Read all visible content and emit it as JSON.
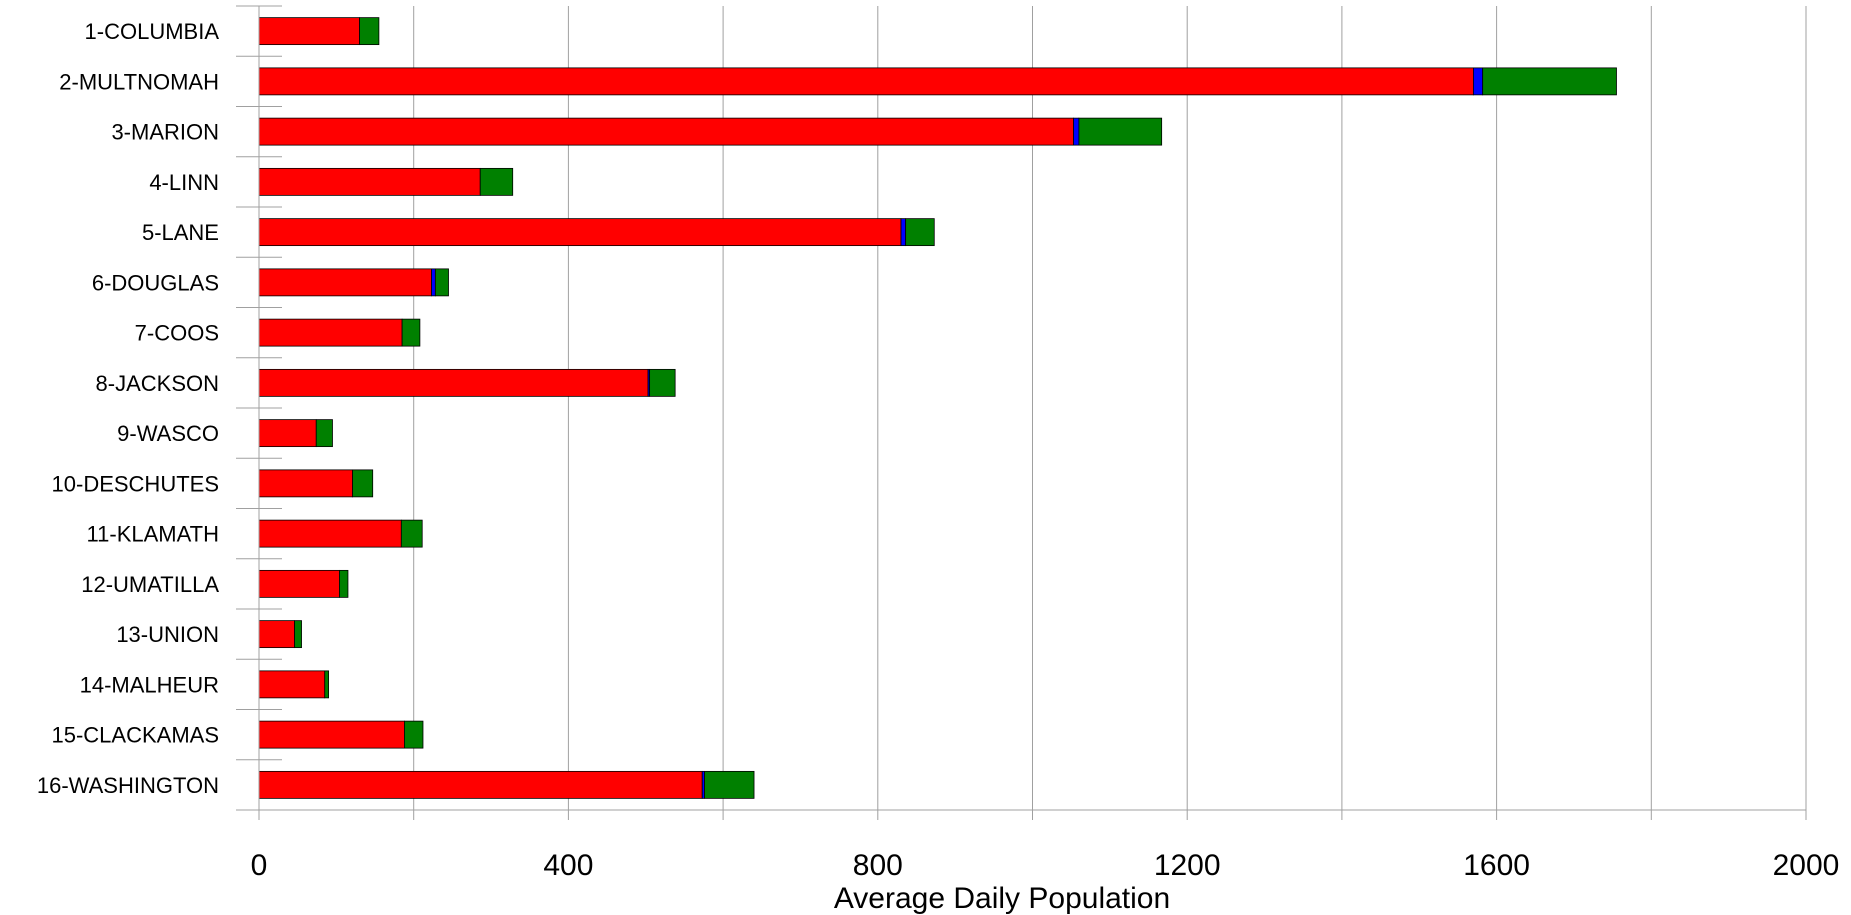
{
  "chart_data": {
    "type": "bar",
    "orientation": "horizontal",
    "stacked": true,
    "categories": [
      "1-COLUMBIA",
      "2-MULTNOMAH",
      "3-MARION",
      "4-LINN",
      "5-LANE",
      "6-DOUGLAS",
      "7-COOS",
      "8-JACKSON",
      "9-WASCO",
      "10-DESCHUTES",
      "11-KLAMATH",
      "12-UMATILLA",
      "13-UNION",
      "14-MALHEUR",
      "15-CLACKAMAS",
      "16-WASHINGTON"
    ],
    "series": [
      {
        "color": "#ff0000",
        "values": [
          130,
          1570,
          1053,
          286,
          830,
          223,
          185,
          503,
          74,
          121,
          184,
          104,
          46,
          85,
          188,
          573
        ]
      },
      {
        "color": "#0000ff",
        "values": [
          0,
          12,
          7,
          0,
          6,
          5,
          0,
          2,
          0,
          0,
          0,
          0,
          0,
          0,
          0,
          3
        ]
      },
      {
        "color": "#008000",
        "values": [
          25,
          173,
          107,
          42,
          37,
          17,
          23,
          33,
          21,
          26,
          27,
          11,
          9,
          5,
          24,
          64
        ]
      }
    ],
    "xlabel": "Average Daily Population",
    "xlim": [
      0,
      2000
    ],
    "xticks": [
      0,
      400,
      800,
      1200,
      1600,
      2000
    ],
    "grid": true,
    "legend": "none"
  }
}
